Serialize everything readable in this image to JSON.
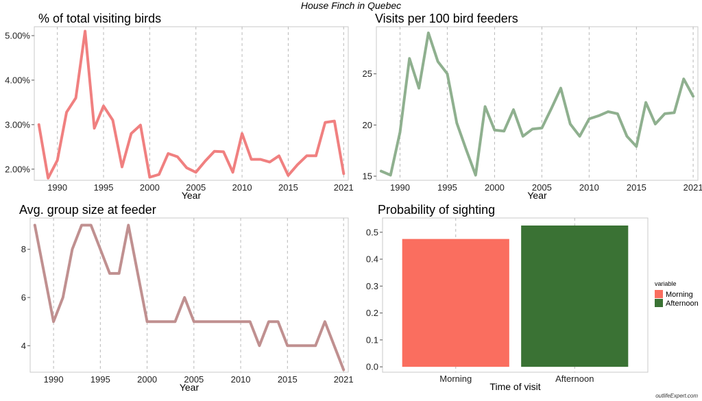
{
  "figure": {
    "title": "House Finch in Quebec",
    "credit": "outlifeExpert.com"
  },
  "colors": {
    "pct_line": "#f08080",
    "visits_line": "#8fb08f",
    "group_line": "#c09090",
    "morning": "#fa6e5f",
    "afternoon": "#3a7234",
    "panel_border": "#c8c8c8",
    "vgrid": "#b8b8b8"
  },
  "chart_data": [
    {
      "type": "line",
      "title": "% of total visiting birds",
      "xlabel": "Year",
      "ylabel": "",
      "xlim": [
        1987.5,
        2021.5
      ],
      "ylim": [
        1.75,
        5.2
      ],
      "xticks": [
        1990,
        1995,
        2000,
        2005,
        2010,
        2015,
        2021
      ],
      "yticks": [
        2,
        3,
        4,
        5
      ],
      "ytick_labels": [
        "2.00%",
        "3.00%",
        "4.00%",
        "5.00%"
      ],
      "grid": "vertical dashed at x ticks",
      "x": [
        1988,
        1989,
        1990,
        1991,
        1992,
        1993,
        1994,
        1995,
        1996,
        1997,
        1998,
        1999,
        2000,
        2001,
        2002,
        2003,
        2004,
        2005,
        2006,
        2007,
        2008,
        2009,
        2010,
        2011,
        2012,
        2013,
        2014,
        2015,
        2016,
        2017,
        2018,
        2019,
        2020,
        2021
      ],
      "series": [
        {
          "values": [
            3.0,
            1.8,
            2.2,
            3.28,
            3.6,
            5.1,
            2.92,
            3.42,
            3.1,
            2.05,
            2.8,
            2.99,
            1.82,
            1.88,
            2.35,
            2.28,
            2.03,
            1.93,
            2.18,
            2.4,
            2.39,
            1.93,
            2.8,
            2.22,
            2.22,
            2.16,
            2.3,
            1.86,
            2.1,
            2.3,
            2.3,
            3.05,
            3.08,
            1.9
          ]
        }
      ]
    },
    {
      "type": "line",
      "title": "Visits per 100 bird feeders",
      "xlabel": "Year",
      "ylabel": "",
      "xlim": [
        1987.5,
        2021.5
      ],
      "ylim": [
        14.6,
        29.6
      ],
      "xticks": [
        1990,
        1995,
        2000,
        2005,
        2010,
        2015,
        2021
      ],
      "yticks": [
        15,
        20,
        25
      ],
      "ytick_labels": [
        "15",
        "20",
        "25"
      ],
      "grid": "vertical dashed at x ticks",
      "x": [
        1988,
        1989,
        1990,
        1991,
        1992,
        1993,
        1994,
        1995,
        1996,
        1997,
        1998,
        1999,
        2000,
        2001,
        2002,
        2003,
        2004,
        2005,
        2006,
        2007,
        2008,
        2009,
        2010,
        2011,
        2012,
        2013,
        2014,
        2015,
        2016,
        2017,
        2018,
        2019,
        2020,
        2021
      ],
      "series": [
        {
          "values": [
            15.5,
            15.1,
            19.3,
            26.5,
            23.6,
            29.0,
            26.2,
            25.0,
            20.2,
            17.6,
            15.1,
            21.8,
            19.5,
            19.4,
            21.5,
            18.9,
            19.6,
            19.7,
            21.6,
            23.6,
            20.1,
            18.9,
            20.6,
            20.9,
            21.3,
            21.1,
            18.9,
            17.9,
            22.2,
            20.1,
            21.1,
            21.2,
            24.5,
            22.8
          ]
        }
      ]
    },
    {
      "type": "line",
      "title": "Avg. group size at feeder",
      "xlabel": "Year",
      "ylabel": "",
      "xlim": [
        1987.5,
        2021.5
      ],
      "ylim": [
        2.9,
        9.3
      ],
      "xticks": [
        1990,
        1995,
        2000,
        2005,
        2010,
        2015,
        2021
      ],
      "yticks": [
        4,
        6,
        8
      ],
      "ytick_labels": [
        "4",
        "6",
        "8"
      ],
      "grid": "vertical dashed at x ticks",
      "x": [
        1988,
        1989,
        1990,
        1991,
        1992,
        1993,
        1994,
        1995,
        1996,
        1997,
        1998,
        1999,
        2000,
        2001,
        2002,
        2003,
        2004,
        2005,
        2006,
        2007,
        2008,
        2009,
        2010,
        2011,
        2012,
        2013,
        2014,
        2015,
        2016,
        2017,
        2018,
        2019,
        2020,
        2021
      ],
      "series": [
        {
          "values": [
            9,
            7,
            5,
            6,
            8,
            9,
            9,
            8,
            7,
            7,
            9,
            7,
            5,
            5,
            5,
            5,
            6,
            5,
            5,
            5,
            5,
            5,
            5,
            5,
            4,
            5,
            5,
            4,
            4,
            4,
            4,
            5,
            4,
            3
          ]
        }
      ]
    },
    {
      "type": "bar",
      "title": "Probability of sighting",
      "xlabel": "Time of visit",
      "ylabel": "",
      "categories": [
        "Morning",
        "Afternoon"
      ],
      "values": [
        0.475,
        0.525
      ],
      "ylim": [
        -0.02,
        0.553
      ],
      "yticks": [
        0.0,
        0.1,
        0.2,
        0.3,
        0.4,
        0.5
      ],
      "ytick_labels": [
        "0.0",
        "0.1",
        "0.2",
        "0.3",
        "0.4",
        "0.5"
      ],
      "grid": "vertical dashed at category centers",
      "legend": {
        "title": "variable",
        "items": [
          "Morning",
          "Afternoon"
        ],
        "position": "right"
      }
    }
  ]
}
